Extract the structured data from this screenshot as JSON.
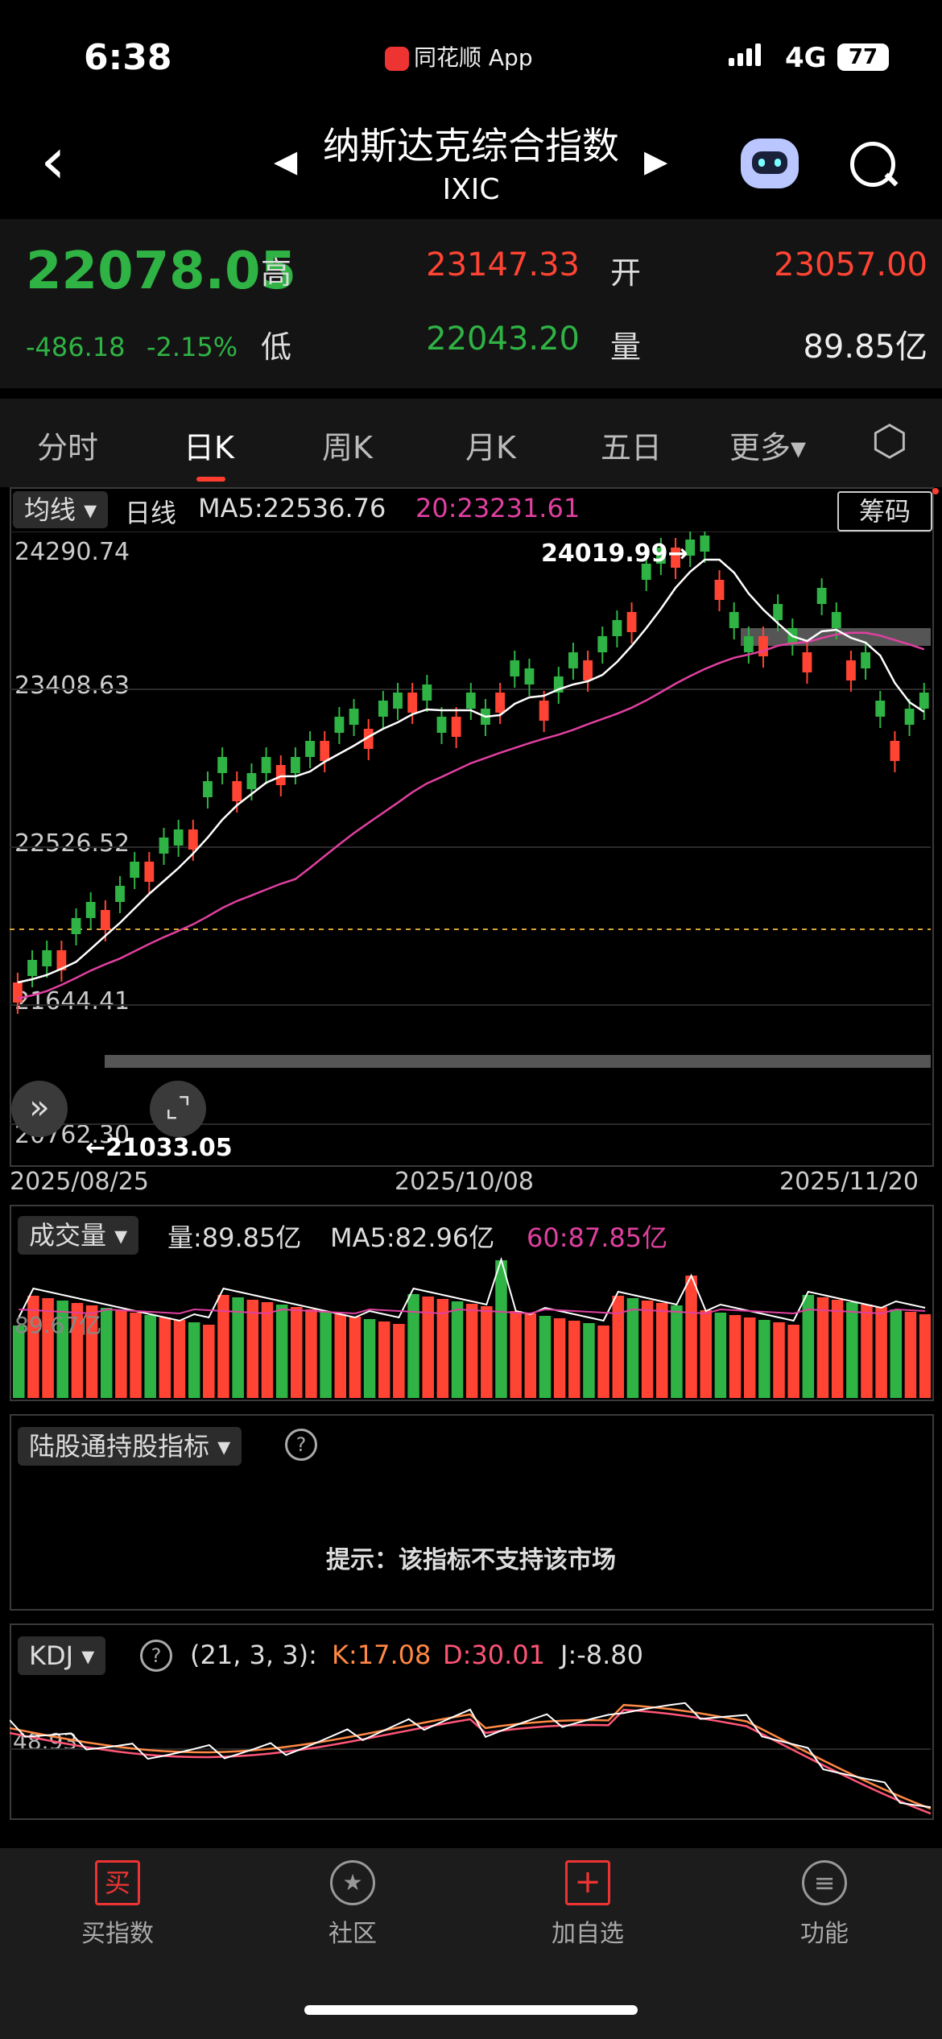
{
  "status": {
    "time": "6:38",
    "app": "同花顺 App",
    "network": "4G",
    "battery": "77"
  },
  "header": {
    "title": "纳斯达克综合指数",
    "code": "IXIC",
    "back": "‹",
    "prev_arrow": "◀",
    "next_arrow": "▶"
  },
  "quote": {
    "price": "22078.05",
    "change": "-486.18",
    "change_pct": "-2.15%",
    "high_label": "高",
    "high": "23147.33",
    "low_label": "低",
    "low": "22043.20",
    "open_label": "开",
    "open": "23057.00",
    "vol_label": "量",
    "vol": "89.85亿",
    "colors": {
      "up": "#ff4433",
      "down": "#2fb344"
    }
  },
  "tabs": [
    "分时",
    "日K",
    "周K",
    "月K",
    "五日",
    "更多▾"
  ],
  "kline": {
    "ma_pill": "均线 ▾",
    "period": "日线",
    "ma5": "MA5:22536.76",
    "ma20": "20:23231.61",
    "chip_button": "筹码",
    "y_ticks": [
      "24290.74",
      "23408.63",
      "22526.52",
      "21644.41",
      "20762.30"
    ],
    "high_mark": "24019.99→",
    "low_mark": "←21033.05",
    "dates": [
      "2025/08/25",
      "2025/10/08",
      "2025/11/20"
    ]
  },
  "volume": {
    "pill": "成交量 ▾",
    "vol": "量:89.85亿",
    "ma5": "MA5:82.96亿",
    "ma60": "60:87.85亿",
    "left_label": "89.67亿"
  },
  "lugutong": {
    "pill": "陆股通持股指标 ▾",
    "help": "?",
    "notice": "提示：该指标不支持该市场"
  },
  "kdj": {
    "pill": "KDJ ▾",
    "help": "?",
    "params": "(21, 3, 3):",
    "k": "K:17.08",
    "d": "D:30.01",
    "j": "J:-8.80",
    "left_label": "48.93"
  },
  "bottom_nav": [
    {
      "label": "买指数",
      "icon": "买"
    },
    {
      "label": "社区",
      "icon": "★"
    },
    {
      "label": "加自选",
      "icon": "+"
    },
    {
      "label": "功能",
      "icon": "≡"
    }
  ]
}
